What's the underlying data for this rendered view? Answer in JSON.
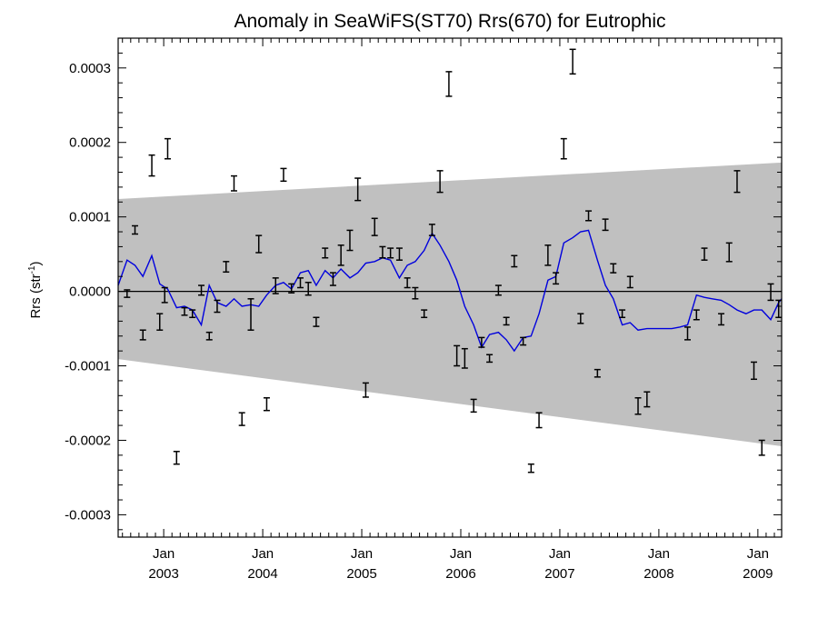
{
  "chart_data": {
    "type": "line",
    "title": "Anomaly in SeaWiFS(ST70) Rrs(670) for Eutrophic",
    "ylabel_main": "Rrs (str",
    "ylabel_sup": "-1",
    "ylabel_tail": ")",
    "ylim": [
      -0.00033,
      0.00034
    ],
    "xlim": [
      2002.54,
      2009.24
    ],
    "y_ticks": [
      {
        "value": 0.0003,
        "label": "0.0003"
      },
      {
        "value": 0.0002,
        "label": "0.0002"
      },
      {
        "value": 0.0001,
        "label": "0.0001"
      },
      {
        "value": 0.0,
        "label": "0.0000"
      },
      {
        "value": -0.0001,
        "label": "-0.0001"
      },
      {
        "value": -0.0002,
        "label": "-0.0002"
      },
      {
        "value": -0.0003,
        "label": "-0.0003"
      }
    ],
    "x_ticks": [
      {
        "value": 2003.0,
        "month": "Jan",
        "year": "2003"
      },
      {
        "value": 2004.0,
        "month": "Jan",
        "year": "2004"
      },
      {
        "value": 2005.0,
        "month": "Jan",
        "year": "2005"
      },
      {
        "value": 2006.0,
        "month": "Jan",
        "year": "2006"
      },
      {
        "value": 2007.0,
        "month": "Jan",
        "year": "2007"
      },
      {
        "value": 2008.0,
        "month": "Jan",
        "year": "2008"
      },
      {
        "value": 2009.0,
        "month": "Jan",
        "year": "2009"
      }
    ],
    "band": {
      "x": [
        2002.54,
        2009.24
      ],
      "upper": [
        0.000124,
        0.000173
      ],
      "lower": [
        -9.1e-05,
        -0.000208
      ],
      "color": "#c0c0c0"
    },
    "zero_line": 0.0,
    "line_series": {
      "color": "#0000dd",
      "x": [
        2002.54,
        2002.63,
        2002.71,
        2002.79,
        2002.88,
        2002.96,
        2003.04,
        2003.13,
        2003.21,
        2003.29,
        2003.38,
        2003.46,
        2003.54,
        2003.63,
        2003.71,
        2003.79,
        2003.88,
        2003.96,
        2004.04,
        2004.13,
        2004.21,
        2004.29,
        2004.38,
        2004.46,
        2004.54,
        2004.63,
        2004.71,
        2004.79,
        2004.88,
        2004.96,
        2005.04,
        2005.13,
        2005.21,
        2005.29,
        2005.38,
        2005.46,
        2005.54,
        2005.63,
        2005.71,
        2005.79,
        2005.88,
        2005.96,
        2006.04,
        2006.13,
        2006.21,
        2006.29,
        2006.38,
        2006.46,
        2006.54,
        2006.63,
        2006.71,
        2006.79,
        2006.88,
        2006.96,
        2007.04,
        2007.13,
        2007.21,
        2007.29,
        2007.38,
        2007.46,
        2007.54,
        2007.63,
        2007.71,
        2007.79,
        2007.88,
        2007.96,
        2008.04,
        2008.13,
        2008.21,
        2008.29,
        2008.38,
        2008.46,
        2008.54,
        2008.63,
        2008.71,
        2008.79,
        2008.88,
        2008.96,
        2009.04,
        2009.13,
        2009.21,
        2009.24
      ],
      "y": [
        8e-06,
        4.2e-05,
        3.5e-05,
        2e-05,
        4.8e-05,
        1e-05,
        3e-06,
        -2.2e-05,
        -2e-05,
        -2.5e-05,
        -4.5e-05,
        8e-06,
        -1.5e-05,
        -2e-05,
        -1e-05,
        -2e-05,
        -1.8e-05,
        -2e-05,
        -5e-06,
        8e-06,
        1.2e-05,
        3e-06,
        2.5e-05,
        2.8e-05,
        8e-06,
        2.8e-05,
        1.8e-05,
        3e-05,
        1.8e-05,
        2.5e-05,
        3.8e-05,
        4e-05,
        4.5e-05,
        4.2e-05,
        1.8e-05,
        3.5e-05,
        4e-05,
        5.5e-05,
        7.8e-05,
        6.2e-05,
        4e-05,
        1.5e-05,
        -2e-05,
        -4.5e-05,
        -7.5e-05,
        -5.8e-05,
        -5.5e-05,
        -6.5e-05,
        -8e-05,
        -6.2e-05,
        -6e-05,
        -3e-05,
        1.5e-05,
        2e-05,
        6.5e-05,
        7.2e-05,
        8e-05,
        8.2e-05,
        4.2e-05,
        8e-06,
        -1e-05,
        -4.5e-05,
        -4.2e-05,
        -5.2e-05,
        -5e-05,
        -5e-05,
        -5e-05,
        -5e-05,
        -4.8e-05,
        -4.5e-05,
        -5e-06,
        -8e-06,
        -1e-05,
        -1.2e-05,
        -1.8e-05,
        -2.5e-05,
        -3e-05,
        -2.5e-05,
        -2.5e-05,
        -3.8e-05,
        -1.5e-05,
        -1e-05
      ]
    },
    "error_bars": {
      "color": "#000000",
      "points": [
        {
          "x": 2002.63,
          "low": -8e-06,
          "high": 2e-06
        },
        {
          "x": 2002.71,
          "low": 7.7e-05,
          "high": 8.8e-05
        },
        {
          "x": 2002.79,
          "low": -6.5e-05,
          "high": -5.2e-05
        },
        {
          "x": 2002.88,
          "low": 0.000155,
          "high": 0.000183
        },
        {
          "x": 2002.96,
          "low": -5.2e-05,
          "high": -3e-05
        },
        {
          "x": 2003.01,
          "low": -1.5e-05,
          "high": 5e-06
        },
        {
          "x": 2003.04,
          "low": 0.000178,
          "high": 0.000205
        },
        {
          "x": 2003.13,
          "low": -0.000232,
          "high": -0.000215
        },
        {
          "x": 2003.21,
          "low": -3.2e-05,
          "high": -2.2e-05
        },
        {
          "x": 2003.29,
          "low": -3.5e-05,
          "high": -2.5e-05
        },
        {
          "x": 2003.38,
          "low": -5e-06,
          "high": 8e-06
        },
        {
          "x": 2003.46,
          "low": -6.5e-05,
          "high": -5.5e-05
        },
        {
          "x": 2003.54,
          "low": -2.8e-05,
          "high": -1.2e-05
        },
        {
          "x": 2003.63,
          "low": 2.6e-05,
          "high": 4e-05
        },
        {
          "x": 2003.71,
          "low": 0.000135,
          "high": 0.000155
        },
        {
          "x": 2003.79,
          "low": -0.00018,
          "high": -0.000163
        },
        {
          "x": 2003.88,
          "low": -5.2e-05,
          "high": -1e-05
        },
        {
          "x": 2003.96,
          "low": 5.2e-05,
          "high": 7.5e-05
        },
        {
          "x": 2004.04,
          "low": -0.00016,
          "high": -0.000143
        },
        {
          "x": 2004.13,
          "low": -3e-06,
          "high": 1.8e-05
        },
        {
          "x": 2004.21,
          "low": 0.000148,
          "high": 0.000165
        },
        {
          "x": 2004.29,
          "low": -2e-06,
          "high": 1e-05
        },
        {
          "x": 2004.38,
          "low": 5e-06,
          "high": 1.8e-05
        },
        {
          "x": 2004.46,
          "low": -5e-06,
          "high": 1.2e-05
        },
        {
          "x": 2004.54,
          "low": -4.7e-05,
          "high": -3.5e-05
        },
        {
          "x": 2004.63,
          "low": 4.5e-05,
          "high": 5.8e-05
        },
        {
          "x": 2004.71,
          "low": 8e-06,
          "high": 2.5e-05
        },
        {
          "x": 2004.79,
          "low": 3.5e-05,
          "high": 6.2e-05
        },
        {
          "x": 2004.88,
          "low": 5.5e-05,
          "high": 8.2e-05
        },
        {
          "x": 2004.96,
          "low": 0.000122,
          "high": 0.000152
        },
        {
          "x": 2005.04,
          "low": -0.000142,
          "high": -0.000123
        },
        {
          "x": 2005.13,
          "low": 7.5e-05,
          "high": 9.8e-05
        },
        {
          "x": 2005.21,
          "low": 4.5e-05,
          "high": 6e-05
        },
        {
          "x": 2005.29,
          "low": 4.5e-05,
          "high": 5.8e-05
        },
        {
          "x": 2005.38,
          "low": 4.2e-05,
          "high": 5.8e-05
        },
        {
          "x": 2005.46,
          "low": 5e-06,
          "high": 1.8e-05
        },
        {
          "x": 2005.54,
          "low": -1e-05,
          "high": 5e-06
        },
        {
          "x": 2005.63,
          "low": -3.5e-05,
          "high": -2.5e-05
        },
        {
          "x": 2005.71,
          "low": 7.5e-05,
          "high": 9e-05
        },
        {
          "x": 2005.79,
          "low": 0.000133,
          "high": 0.000162
        },
        {
          "x": 2005.88,
          "low": 0.000262,
          "high": 0.000295
        },
        {
          "x": 2005.96,
          "low": -0.0001,
          "high": -7.3e-05
        },
        {
          "x": 2006.04,
          "low": -0.000103,
          "high": -7.7e-05
        },
        {
          "x": 2006.13,
          "low": -0.000162,
          "high": -0.000145
        },
        {
          "x": 2006.21,
          "low": -7.5e-05,
          "high": -6.2e-05
        },
        {
          "x": 2006.29,
          "low": -9.5e-05,
          "high": -8.5e-05
        },
        {
          "x": 2006.38,
          "low": -5e-06,
          "high": 8e-06
        },
        {
          "x": 2006.46,
          "low": -4.5e-05,
          "high": -3.5e-05
        },
        {
          "x": 2006.54,
          "low": 3.3e-05,
          "high": 4.8e-05
        },
        {
          "x": 2006.63,
          "low": -7.2e-05,
          "high": -6.2e-05
        },
        {
          "x": 2006.71,
          "low": -0.000243,
          "high": -0.000232
        },
        {
          "x": 2006.79,
          "low": -0.000183,
          "high": -0.000163
        },
        {
          "x": 2006.88,
          "low": 3.5e-05,
          "high": 6.2e-05
        },
        {
          "x": 2006.96,
          "low": 1e-05,
          "high": 2.5e-05
        },
        {
          "x": 2007.04,
          "low": 0.000178,
          "high": 0.000205
        },
        {
          "x": 2007.13,
          "low": 0.000292,
          "high": 0.000325
        },
        {
          "x": 2007.21,
          "low": -4.3e-05,
          "high": -3e-05
        },
        {
          "x": 2007.29,
          "low": 9.5e-05,
          "high": 0.000108
        },
        {
          "x": 2007.38,
          "low": -0.000115,
          "high": -0.000105
        },
        {
          "x": 2007.46,
          "low": 8.2e-05,
          "high": 9.7e-05
        },
        {
          "x": 2007.54,
          "low": 2.5e-05,
          "high": 3.7e-05
        },
        {
          "x": 2007.63,
          "low": -3.5e-05,
          "high": -2.5e-05
        },
        {
          "x": 2007.71,
          "low": 5e-06,
          "high": 2e-05
        },
        {
          "x": 2007.79,
          "low": -0.000165,
          "high": -0.000143
        },
        {
          "x": 2007.88,
          "low": -0.000155,
          "high": -0.000135
        },
        {
          "x": 2008.29,
          "low": -6.5e-05,
          "high": -4.8e-05
        },
        {
          "x": 2008.38,
          "low": -3.8e-05,
          "high": -2.5e-05
        },
        {
          "x": 2008.46,
          "low": 4.2e-05,
          "high": 5.8e-05
        },
        {
          "x": 2008.63,
          "low": -4.5e-05,
          "high": -3e-05
        },
        {
          "x": 2008.71,
          "low": 4e-05,
          "high": 6.5e-05
        },
        {
          "x": 2008.79,
          "low": 0.000133,
          "high": 0.000162
        },
        {
          "x": 2008.96,
          "low": -0.000118,
          "high": -9.5e-05
        },
        {
          "x": 2009.04,
          "low": -0.00022,
          "high": -0.0002
        },
        {
          "x": 2009.13,
          "low": -1.2e-05,
          "high": 1e-05
        },
        {
          "x": 2009.21,
          "low": -3.5e-05,
          "high": -1.2e-05
        }
      ]
    }
  }
}
